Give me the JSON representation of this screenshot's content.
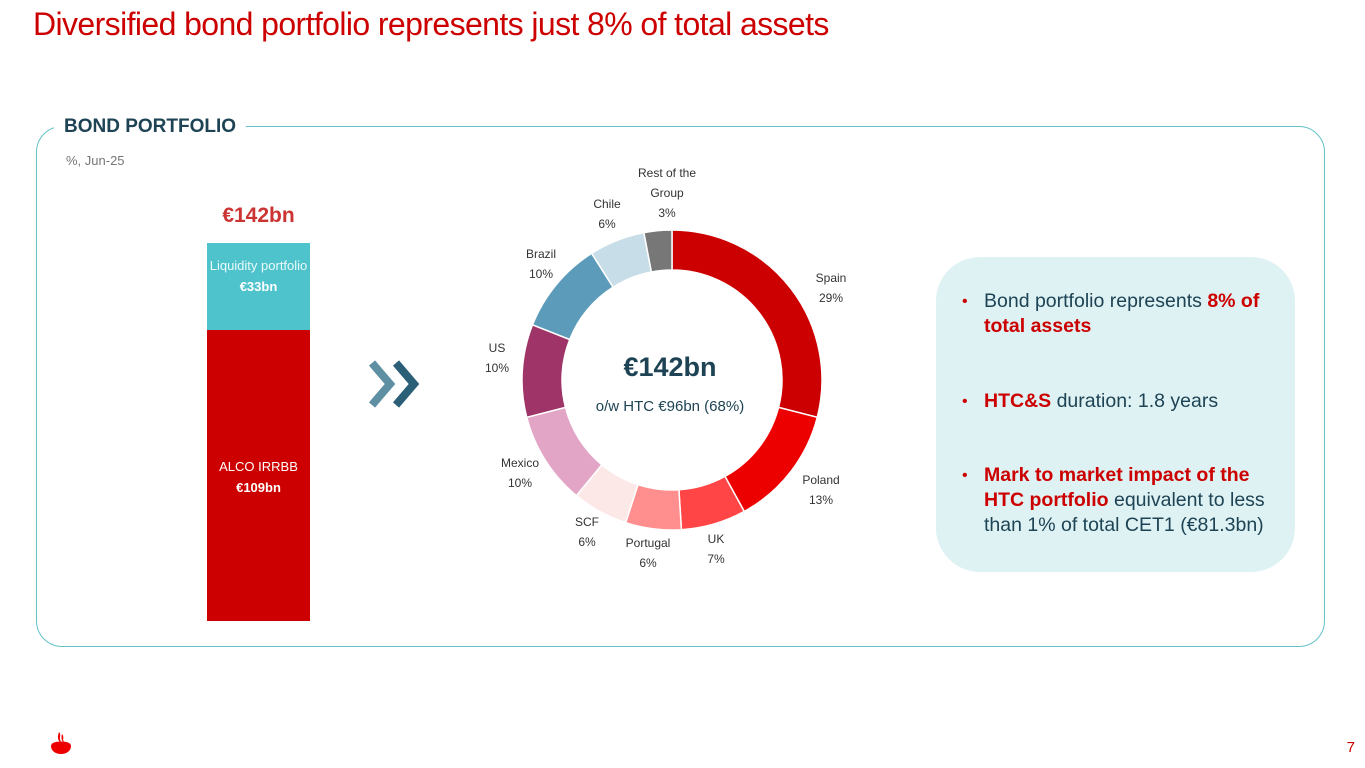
{
  "page": {
    "title": "Diversified bond portfolio represents just 8% of total assets",
    "page_number": "7"
  },
  "section": {
    "label": "BOND PORTFOLIO",
    "subtitle": "%, Jun-25"
  },
  "stack": {
    "total": "€142bn",
    "liquidity_label": "Liquidity portfolio",
    "liquidity_value": "€33bn",
    "alco_label": "ALCO IRRBB",
    "alco_value": "€109bn"
  },
  "donut_center": {
    "total": "€142bn",
    "note": "o/w HTC €96bn (68%)"
  },
  "panel": {
    "b1_text": "Bond portfolio represents ",
    "b1_highlight": "8% of total assets",
    "b2_highlight": "HTC&S",
    "b2_text": " duration: 1.8 years",
    "b3_highlight": "Mark to market impact of the HTC portfolio",
    "b3_text": " equivalent to less than 1% of total CET1 (€81.3bn)"
  },
  "chart_data": [
    {
      "type": "bar",
      "stacked": true,
      "categories": [
        "€142bn"
      ],
      "series": [
        {
          "name": "ALCO IRRBB",
          "values": [
            109
          ],
          "label": "€109bn",
          "color": "#cc0000"
        },
        {
          "name": "Liquidity portfolio",
          "values": [
            33
          ],
          "label": "€33bn",
          "color": "#4fc3cc"
        }
      ]
    },
    {
      "type": "pie",
      "donut": true,
      "slices": [
        {
          "label": "Spain",
          "value": 29,
          "pct": "29%",
          "color": "#cc0000",
          "label_lines": [
            "Spain",
            "29%"
          ]
        },
        {
          "label": "Poland",
          "value": 13,
          "pct": "13%",
          "color": "#ec0000",
          "label_lines": [
            "Poland",
            "13%"
          ]
        },
        {
          "label": "UK",
          "value": 7,
          "pct": "7%",
          "color": "#ff4545",
          "label_lines": [
            "UK",
            "7%"
          ]
        },
        {
          "label": "Portugal",
          "value": 6,
          "pct": "6%",
          "color": "#ff8f8f",
          "label_lines": [
            "Portugal",
            "6%"
          ]
        },
        {
          "label": "SCF",
          "value": 6,
          "pct": "6%",
          "color": "#fde8e8",
          "label_lines": [
            "SCF",
            "6%"
          ]
        },
        {
          "label": "Mexico",
          "value": 10,
          "pct": "10%",
          "color": "#e2a5c6",
          "label_lines": [
            "Mexico",
            "10%"
          ]
        },
        {
          "label": "US",
          "value": 10,
          "pct": "10%",
          "color": "#9e3468",
          "label_lines": [
            "US",
            "10%"
          ]
        },
        {
          "label": "Brazil",
          "value": 10,
          "pct": "10%",
          "color": "#5c9cba",
          "label_lines": [
            "Brazil",
            "10%"
          ]
        },
        {
          "label": "Chile",
          "value": 6,
          "pct": "6%",
          "color": "#c7dde7",
          "label_lines": [
            "Chile",
            "6%"
          ]
        },
        {
          "label": "Rest of the Group",
          "value": 3,
          "pct": "3%",
          "color": "#777777",
          "label_lines": [
            "Rest of the",
            "Group",
            "3%"
          ]
        }
      ]
    }
  ]
}
